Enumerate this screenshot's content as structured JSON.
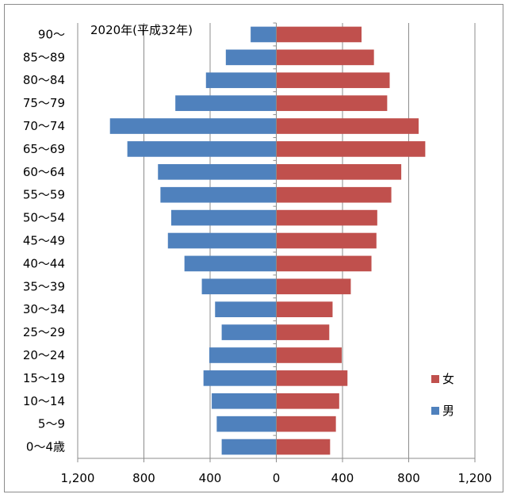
{
  "chart_data": {
    "type": "bar",
    "orientation": "horizontal-population-pyramid",
    "title": "2020年(平成32年)",
    "categories": [
      "90～",
      "85～89",
      "80～84",
      "75～79",
      "70～74",
      "65～69",
      "60～64",
      "55～59",
      "50～54",
      "45～49",
      "40～44",
      "35～39",
      "30～34",
      "25～29",
      "20～24",
      "15～19",
      "10～14",
      "5～9",
      "0～4歳"
    ],
    "series": [
      {
        "name": "男",
        "color": "#4f81bd",
        "side": "left",
        "values": [
          155,
          305,
          425,
          610,
          1005,
          900,
          715,
          700,
          635,
          655,
          555,
          450,
          370,
          330,
          405,
          440,
          390,
          360,
          330
        ]
      },
      {
        "name": "女",
        "color": "#c0504d",
        "side": "right",
        "values": [
          515,
          590,
          685,
          670,
          860,
          900,
          755,
          695,
          610,
          605,
          575,
          450,
          340,
          320,
          395,
          430,
          380,
          360,
          325
        ]
      }
    ],
    "x_tick_labels": [
      "1,200",
      "800",
      "400",
      "0",
      "400",
      "800",
      "1,200"
    ],
    "x_ticks": [
      -1200,
      -800,
      -400,
      0,
      400,
      800,
      1200
    ],
    "xlim": [
      -1200,
      1200
    ],
    "grid": true,
    "legend_position": "right",
    "legend": [
      {
        "name": "女",
        "color": "#c0504d"
      },
      {
        "name": "男",
        "color": "#4f81bd"
      }
    ]
  }
}
